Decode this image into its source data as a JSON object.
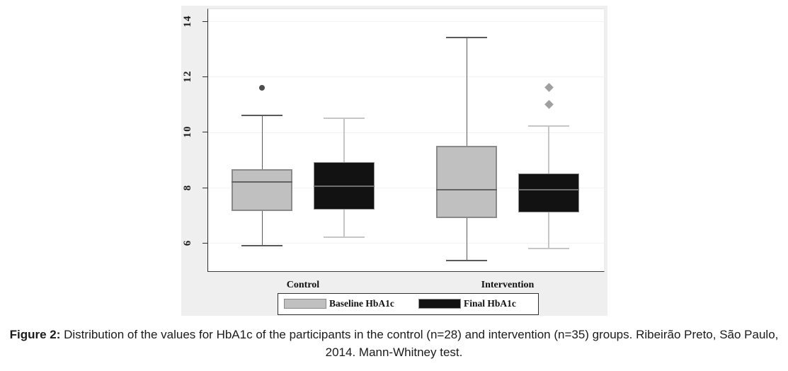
{
  "caption": {
    "label": "Figure 2:",
    "text": " Distribution of the values for HbA1c of the participants in the control (n=28) and intervention (n=35) groups. Ribeirão Preto, São Paulo, 2014. Mann-Whitney test."
  },
  "chart_data": {
    "type": "box",
    "orientation": "vertical",
    "title": "",
    "xlabel": "",
    "ylabel": "",
    "groups": [
      "Control",
      "Intervention"
    ],
    "series": [
      {
        "name": "Baseline HbA1c",
        "fill": "#c0c0c0",
        "edge": "#8a8a8a",
        "edge_width": 2,
        "whisker_color": "#5a5a5a",
        "whisker_width": 1,
        "median_color": "#636363",
        "boxes": [
          {
            "group": "Control",
            "whislo": 5.9,
            "q1": 7.15,
            "med": 8.2,
            "q3": 8.65,
            "whishi": 10.6,
            "outliers": [
              11.6
            ],
            "outlier_marker": "dot",
            "outlier_color": "#4d4d4d"
          },
          {
            "group": "Intervention",
            "whislo": 5.35,
            "q1": 6.9,
            "med": 7.9,
            "q3": 9.5,
            "whishi": 13.4,
            "outliers": [],
            "outlier_marker": "dot",
            "outlier_color": "#4d4d4d"
          }
        ]
      },
      {
        "name": "Final HbA1c",
        "fill": "#121212",
        "edge": "#8c8c8c",
        "edge_width": 1,
        "whisker_color": "#c6c6c6",
        "whisker_width": 2,
        "median_color": "#6e6e6e",
        "boxes": [
          {
            "group": "Control",
            "whislo": 6.2,
            "q1": 7.2,
            "med": 8.05,
            "q3": 8.9,
            "whishi": 10.5,
            "outliers": [],
            "outlier_marker": "diamond",
            "outlier_color": "#a0a0a0"
          },
          {
            "group": "Intervention",
            "whislo": 5.8,
            "q1": 7.1,
            "med": 7.9,
            "q3": 8.5,
            "whishi": 10.2,
            "outliers": [
              11.6,
              11.0
            ],
            "outlier_marker": "diamond",
            "outlier_color": "#a0a0a0"
          }
        ]
      }
    ],
    "yticks": [
      6,
      8,
      10,
      12,
      14
    ],
    "ylim": [
      5,
      14.45
    ],
    "grid": true,
    "legend": [
      "Baseline HbA1c",
      "Final HbA1c"
    ],
    "legend_position": "bottom",
    "background": "#efefef",
    "plot_background": "#ffffff"
  }
}
